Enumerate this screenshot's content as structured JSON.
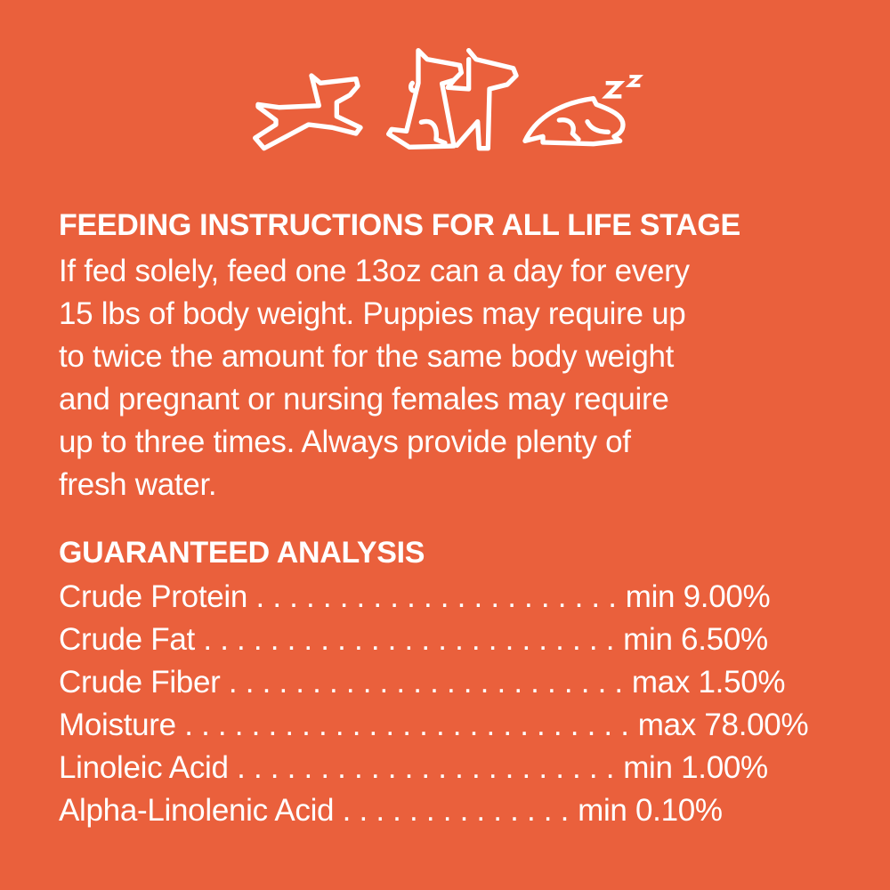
{
  "icons": [
    "running-dog-icon",
    "sitting-dogs-icon",
    "sleeping-dog-icon"
  ],
  "colors": {
    "background": "#EA603C",
    "text": "#FFFFFF"
  },
  "feeding": {
    "title": "FEEDING INSTRUCTIONS FOR ALL LIFE STAGE",
    "lines": [
      "If fed solely, feed one 13oz can a day for every",
      "15 lbs of body weight. Puppies may require up",
      "to twice the amount for the same body weight",
      "and pregnant or nursing females may require",
      "up to three times. Always provide plenty of",
      "fresh water."
    ]
  },
  "analysis": {
    "title": "GUARANTEED ANALYSIS",
    "rows": [
      {
        "label": "Crude Protein . . . . . . . . . . . . . . . . . . . . . .",
        "value": "min 9.00%"
      },
      {
        "label": "Crude Fat  . . . . . . . . . . . . . . . . . . . . . . . . .",
        "value": "min 6.50%"
      },
      {
        "label": "Crude Fiber . . . . . . . . . . . . . . . . . . . . . . . .",
        "value": "max 1.50%"
      },
      {
        "label": "Moisture . . . . . . . . . . . . . . . . . . . . . . . . . . .",
        "value": "max 78.00%"
      },
      {
        "label": "Linoleic Acid . . . . . . . . . . . . . . . . . . . . . . .",
        "value": "min 1.00%"
      },
      {
        "label": "Alpha-Linolenic Acid . . . . . . . . . . . . . .",
        "value": "min 0.10%"
      }
    ]
  }
}
